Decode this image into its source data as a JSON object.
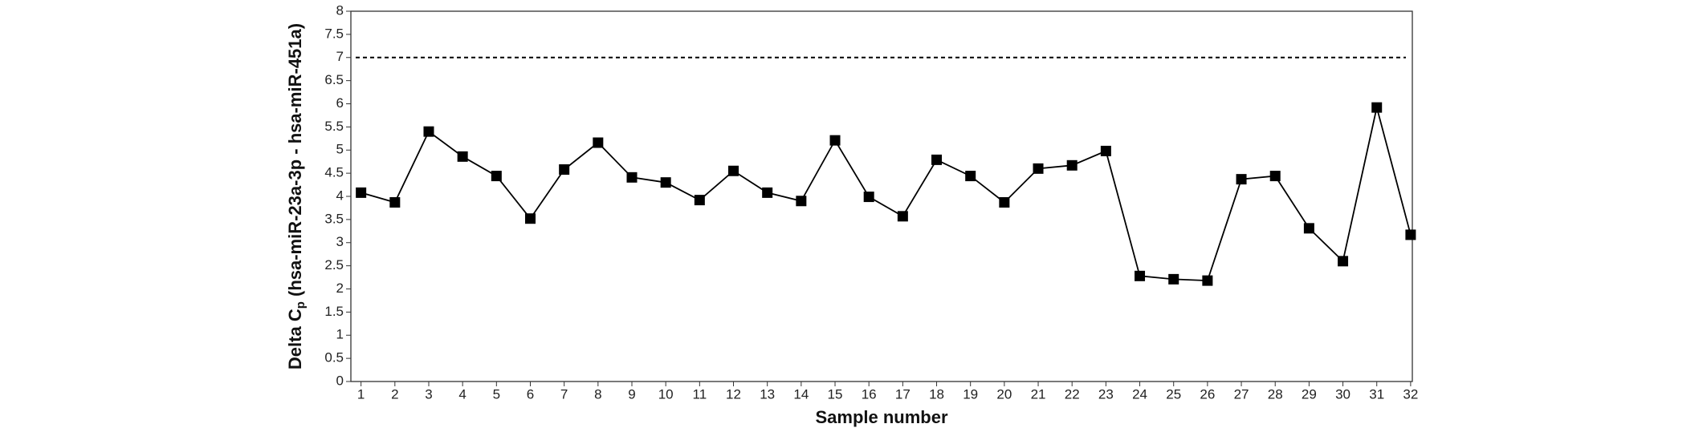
{
  "chart_data": {
    "type": "line",
    "x_label": "Sample number",
    "y_label": {
      "main": "Delta C",
      "subscript": "p",
      "rest": " (hsa-miR-23a-3p - hsa-miR-451a)"
    },
    "x": [
      1,
      2,
      3,
      4,
      5,
      6,
      7,
      8,
      9,
      10,
      11,
      12,
      13,
      14,
      15,
      16,
      17,
      18,
      19,
      20,
      21,
      22,
      23,
      24,
      25,
      26,
      27,
      28,
      29,
      30,
      31,
      32
    ],
    "series": [
      {
        "name": "Delta Cp",
        "color": "#000000",
        "values": [
          4.08,
          3.87,
          5.4,
          4.86,
          4.44,
          3.52,
          4.58,
          5.16,
          4.41,
          4.3,
          3.92,
          4.55,
          4.08,
          3.9,
          5.21,
          3.99,
          3.57,
          4.79,
          4.44,
          3.87,
          4.6,
          4.67,
          4.98,
          2.28,
          2.21,
          2.18,
          4.37,
          4.44,
          3.31,
          2.6,
          5.92,
          3.17
        ]
      }
    ],
    "reference_line": 7,
    "xlim": [
      0.7,
      32.05
    ],
    "xticks": [
      1,
      2,
      3,
      4,
      5,
      6,
      7,
      8,
      9,
      10,
      11,
      12,
      13,
      14,
      15,
      16,
      17,
      18,
      19,
      20,
      21,
      22,
      23,
      24,
      25,
      26,
      27,
      28,
      29,
      30,
      31,
      32
    ],
    "ylim": [
      0,
      8
    ],
    "yticks": [
      0,
      0.5,
      1,
      1.5,
      2,
      2.5,
      3,
      3.5,
      4,
      4.5,
      5,
      5.5,
      6,
      6.5,
      7,
      7.5,
      8
    ],
    "grid": false
  }
}
